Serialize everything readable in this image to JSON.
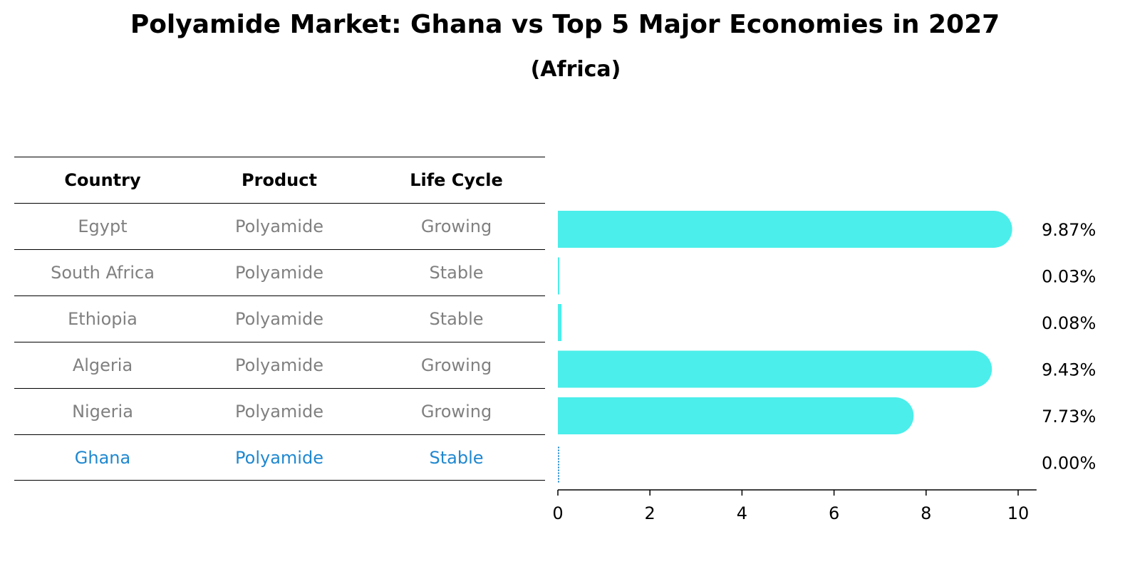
{
  "title": "Polyamide Market: Ghana vs Top 5 Major Economies in 2027",
  "subtitle": "(Africa)",
  "table": {
    "headers": [
      "Country",
      "Product",
      "Life Cycle"
    ],
    "rows": [
      [
        "Egypt",
        "Polyamide",
        "Growing"
      ],
      [
        "South Africa",
        "Polyamide",
        "Stable"
      ],
      [
        "Ethiopia",
        "Polyamide",
        "Stable"
      ],
      [
        "Algeria",
        "Polyamide",
        "Growing"
      ],
      [
        "Nigeria",
        "Polyamide",
        "Growing"
      ],
      [
        "Ghana",
        "Polyamide",
        "Stable"
      ]
    ],
    "highlight_row": "Ghana"
  },
  "colors": {
    "bar": "#4beeea",
    "text_normal": "#808080",
    "text_highlight": "#1f88d0",
    "rule": "#000000"
  },
  "chart_data": {
    "type": "bar",
    "orientation": "horizontal",
    "categories": [
      "Egypt",
      "South Africa",
      "Ethiopia",
      "Algeria",
      "Nigeria",
      "Ghana"
    ],
    "values": [
      9.87,
      0.03,
      0.08,
      9.43,
      7.73,
      0.0
    ],
    "value_labels": [
      "9.87%",
      "0.03%",
      "0.08%",
      "9.43%",
      "7.73%",
      "0.00%"
    ],
    "xlim": [
      0,
      10.4
    ],
    "xticks": [
      0,
      2,
      4,
      6,
      8,
      10
    ],
    "xtick_labels": [
      "0",
      "2",
      "4",
      "6",
      "8",
      "10"
    ],
    "title": "Polyamide Market: Ghana vs Top 5 Major Economies in 2027",
    "subtitle": "(Africa)",
    "xlabel": "",
    "ylabel": "",
    "grid": false,
    "bar_color": "#4beeea",
    "highlight_category": "Ghana",
    "highlight_color": "#1f88d0"
  }
}
